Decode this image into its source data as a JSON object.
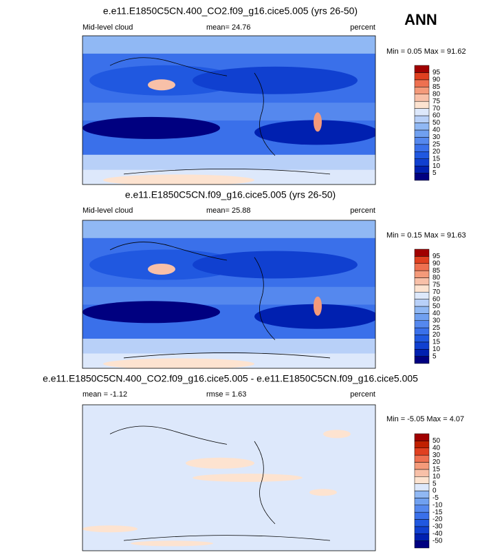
{
  "season": "ANN",
  "panels": [
    {
      "title": "e.e11.E1850C5CN.400_CO2.f09_g16.cice5.005 (yrs 26-50)",
      "left_label": "Mid-level cloud",
      "center_label": "mean=  24.76",
      "right_label": "percent",
      "minmax": "Min =  0.05 Max = 91.62",
      "levels": [
        5,
        10,
        15,
        20,
        25,
        30,
        40,
        50,
        60,
        70,
        75,
        80,
        85,
        90,
        95
      ],
      "colors": [
        "#000080",
        "#0020b0",
        "#1040d0",
        "#2058e0",
        "#3a70ea",
        "#5588ee",
        "#70a0f0",
        "#90b8f4",
        "#b8d0f8",
        "#dde8fb",
        "#fde3d0",
        "#f8c0a8",
        "#f49a7a",
        "#ee7050",
        "#e04020",
        "#a00000"
      ]
    },
    {
      "title": "e.e11.E1850C5CN.f09_g16.cice5.005 (yrs 26-50)",
      "left_label": "Mid-level cloud",
      "center_label": "mean=  25.88",
      "right_label": "percent",
      "minmax": "Min =  0.15 Max = 91.63",
      "levels": [
        5,
        10,
        15,
        20,
        25,
        30,
        40,
        50,
        60,
        70,
        75,
        80,
        85,
        90,
        95
      ],
      "colors": [
        "#000080",
        "#0020b0",
        "#1040d0",
        "#2058e0",
        "#3a70ea",
        "#5588ee",
        "#70a0f0",
        "#90b8f4",
        "#b8d0f8",
        "#dde8fb",
        "#fde3d0",
        "#f8c0a8",
        "#f49a7a",
        "#ee7050",
        "#e04020",
        "#a00000"
      ]
    },
    {
      "title": "e.e11.E1850C5CN.400_CO2.f09_g16.cice5.005 - e.e11.E1850C5CN.f09_g16.cice5.005",
      "left_label": "mean = -1.12",
      "center_label": "rmse =  1.63",
      "right_label": "percent",
      "minmax": "Min = -5.05 Max =  4.07",
      "levels": [
        -50,
        -40,
        -30,
        -20,
        -15,
        -10,
        -5,
        0,
        5,
        10,
        15,
        20,
        30,
        40,
        50
      ],
      "colors": [
        "#000080",
        "#0020b0",
        "#1040d0",
        "#2058e0",
        "#3a70ea",
        "#5588ee",
        "#70a0f0",
        "#90b8f4",
        "#dde8fb",
        "#fde3d0",
        "#f8c0a8",
        "#f49a7a",
        "#ee7050",
        "#e04020",
        "#c02000",
        "#a00000"
      ]
    }
  ]
}
